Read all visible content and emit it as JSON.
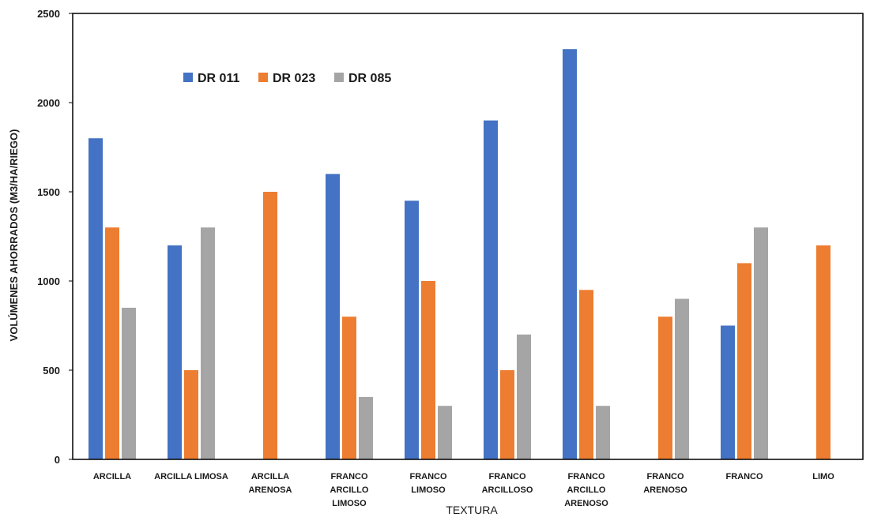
{
  "chart_data": {
    "type": "bar",
    "title": "",
    "xlabel": "TEXTURA",
    "ylabel": "VOLÚMENES AHORRADOS (M3/HA/RIEGO)",
    "ylim": [
      0,
      2500
    ],
    "yticks": [
      0,
      500,
      1000,
      1500,
      2000,
      2500
    ],
    "grid": false,
    "legend_position": "top-left",
    "categories": [
      [
        "ARCILLA"
      ],
      [
        "ARCILLA LIMOSA"
      ],
      [
        "ARCILLA",
        "ARENOSA"
      ],
      [
        "FRANCO",
        "ARCILLO",
        "LIMOSO"
      ],
      [
        "FRANCO",
        "LIMOSO"
      ],
      [
        "FRANCO",
        "ARCILLOSO"
      ],
      [
        "FRANCO",
        "ARCILLO",
        "ARENOSO"
      ],
      [
        "FRANCO",
        "ARENOSO"
      ],
      [
        "FRANCO"
      ],
      [
        "LIMO"
      ]
    ],
    "series": [
      {
        "name": "DR 011",
        "color": "#4472C4",
        "values": [
          1800,
          1200,
          0,
          1600,
          1450,
          1900,
          2300,
          0,
          750,
          0
        ]
      },
      {
        "name": "DR 023",
        "color": "#ED7D31",
        "values": [
          1300,
          500,
          1500,
          800,
          1000,
          500,
          950,
          800,
          1100,
          1200
        ]
      },
      {
        "name": "DR 085",
        "color": "#A5A5A5",
        "values": [
          850,
          1300,
          0,
          350,
          300,
          700,
          300,
          900,
          1300,
          0
        ]
      }
    ]
  }
}
